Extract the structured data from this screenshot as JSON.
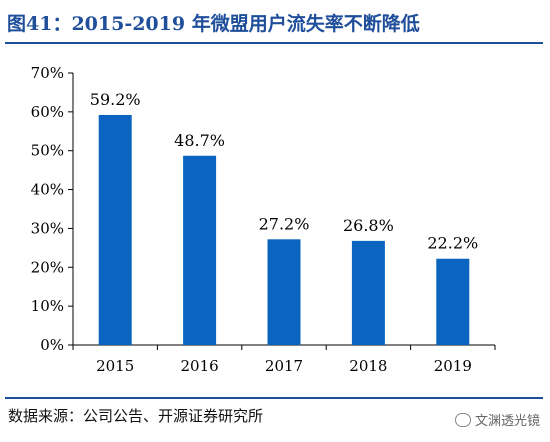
{
  "header": {
    "title": "图41：2015-2019 年微盟用户流失率不断降低"
  },
  "footer": {
    "source": "数据来源：公司公告、开源证券研究所",
    "watermark": "文渊透光镜"
  },
  "colors": {
    "title": "#1f4e9a",
    "bar": "#0b65c0",
    "axis": "#000000"
  },
  "chart_data": {
    "type": "bar",
    "categories": [
      "2015",
      "2016",
      "2017",
      "2018",
      "2019"
    ],
    "values": [
      59.2,
      48.7,
      27.2,
      26.8,
      22.2
    ],
    "data_labels": [
      "59.2%",
      "48.7%",
      "27.2%",
      "26.8%",
      "22.2%"
    ],
    "yticks": [
      "0%",
      "10%",
      "20%",
      "30%",
      "40%",
      "50%",
      "60%",
      "70%"
    ],
    "ylim": [
      0,
      70
    ],
    "grid": false,
    "legend": "none"
  }
}
